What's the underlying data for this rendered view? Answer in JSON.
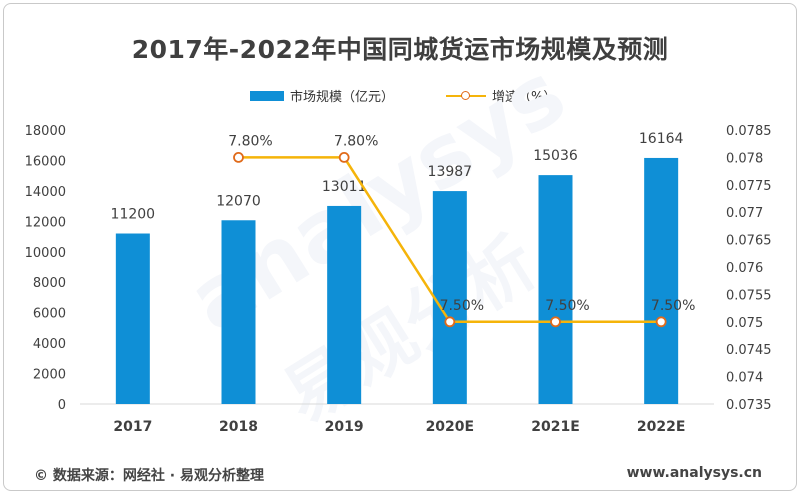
{
  "title": "2017年-2022年中国同城货运市场规模及预测",
  "legend": {
    "bar_label": "市场规模（亿元）",
    "line_label": "增速（%）"
  },
  "footer": {
    "source": "©   数据来源：网经社 · 易观分析整理",
    "url": "www.analysys.cn"
  },
  "watermark": {
    "latin": "analysys",
    "chinese": "易观分析"
  },
  "colors": {
    "bar": "#0f8fd6",
    "line": "#f5b40a",
    "marker_edge": "#e06a1a"
  },
  "chart_data": {
    "type": "bar",
    "categories": [
      "2017",
      "2018",
      "2019",
      "2020E",
      "2021E",
      "2022E"
    ],
    "series": [
      {
        "name": "市场规模（亿元）",
        "type": "bar",
        "axis": "left",
        "values": [
          11200,
          12070,
          13011,
          13987,
          15036,
          16164
        ],
        "labels": [
          "11200",
          "12070",
          "13011",
          "13987",
          "15036",
          "16164"
        ]
      },
      {
        "name": "增速（%）",
        "type": "line",
        "axis": "right",
        "x": [
          "2018",
          "2019",
          "2020E",
          "2021E",
          "2022E"
        ],
        "values": [
          0.078,
          0.078,
          0.075,
          0.075,
          0.075
        ],
        "labels": [
          "7.80%",
          "7.80%",
          "7.50%",
          "7.50%",
          "7.50%"
        ]
      }
    ],
    "y_left": {
      "min": 0,
      "max": 18000,
      "ticks": [
        "0",
        "2000",
        "4000",
        "6000",
        "8000",
        "10000",
        "12000",
        "14000",
        "16000",
        "18000"
      ]
    },
    "y_right": {
      "min": 0.0735,
      "max": 0.0785,
      "ticks": [
        "0.0735",
        "0.074",
        "0.0745",
        "0.075",
        "0.0755",
        "0.076",
        "0.0765",
        "0.077",
        "0.0775",
        "0.078",
        "0.0785"
      ]
    },
    "grid": false,
    "legend_position": "top"
  }
}
